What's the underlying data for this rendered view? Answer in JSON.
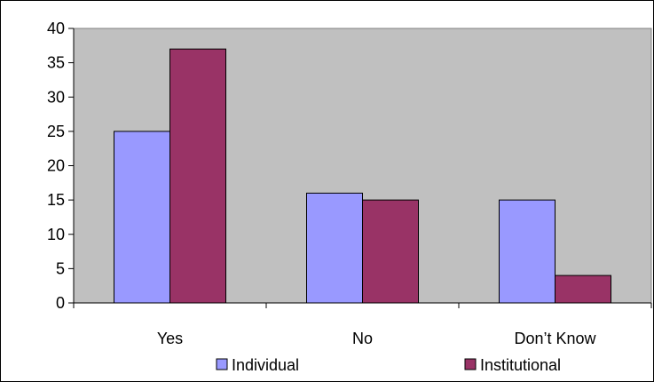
{
  "chart_data": {
    "type": "bar",
    "title": "",
    "xlabel": "",
    "ylabel": "",
    "categories": [
      "Yes",
      "No",
      "Don’t Know"
    ],
    "series": [
      {
        "name": "Individual",
        "values": [
          25,
          16,
          15
        ],
        "color": "#9999ff"
      },
      {
        "name": "Institutional",
        "values": [
          37,
          15,
          4
        ],
        "color": "#993366"
      }
    ],
    "ylim": [
      0,
      40
    ],
    "yticks": [
      0,
      5,
      10,
      15,
      20,
      25,
      30,
      35,
      40
    ],
    "ytick_labels": [
      "0",
      "5",
      "10",
      "15",
      "20",
      "25",
      "30",
      "35",
      "40"
    ],
    "plot_background": "#c0c0c0",
    "grid": false,
    "legend_position": "bottom"
  }
}
